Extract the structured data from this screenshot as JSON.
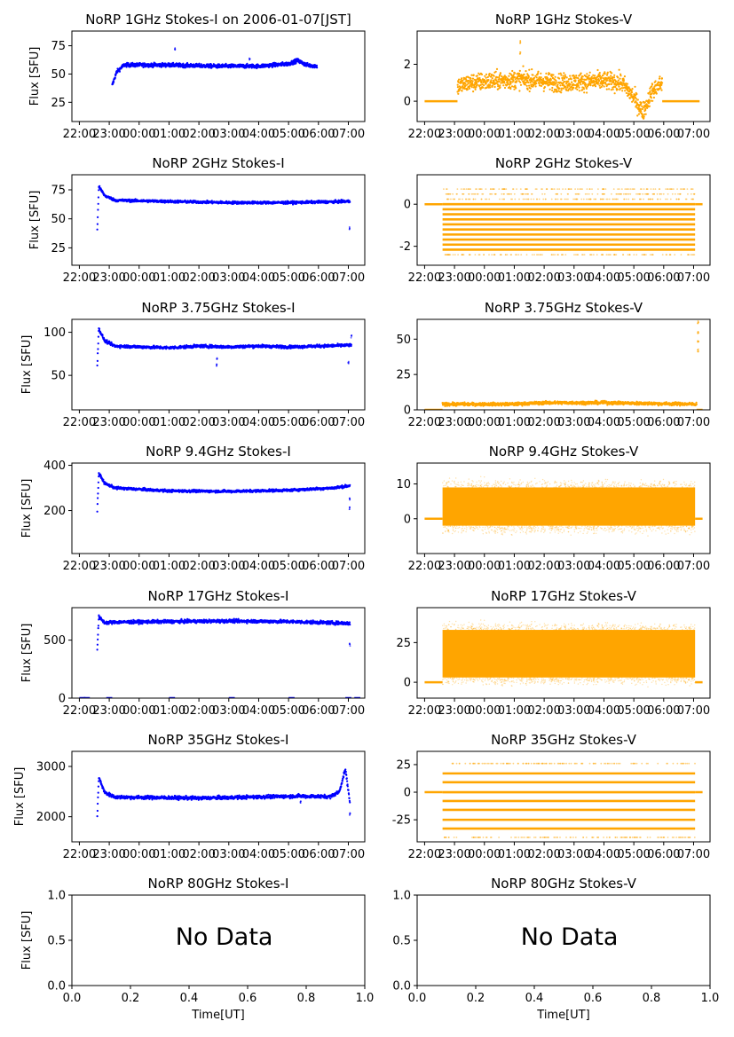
{
  "figure": {
    "xlabel": "Time[UT]",
    "ylabel": "Flux [SFU]",
    "colors": {
      "stokes_i": "#0000ff",
      "stokes_v": "#ffa500"
    },
    "time_ticks": [
      "22:00",
      "23:00",
      "00:00",
      "01:00",
      "02:00",
      "03:00",
      "04:00",
      "05:00",
      "06:00",
      "07:00"
    ]
  },
  "chart_data": [
    {
      "type": "scatter",
      "title": "NoRP 1GHz Stokes-I on 2006-01-07[JST]",
      "ylabel": "Flux [SFU]",
      "ylim": [
        8,
        88
      ],
      "yticks": [
        25,
        50,
        75
      ],
      "x_unit": "hours since 22:00 UT",
      "xlim": [
        -0.25,
        9.55
      ],
      "data": {
        "start": 1.1,
        "end": 7.95,
        "baseline": [
          [
            1.1,
            40
          ],
          [
            1.25,
            52
          ],
          [
            1.5,
            58
          ],
          [
            3,
            58
          ],
          [
            4.5,
            57
          ],
          [
            6,
            57
          ],
          [
            7,
            59
          ],
          [
            7.3,
            62
          ],
          [
            7.6,
            58
          ],
          [
            7.95,
            57
          ]
        ],
        "noise": 1.2,
        "spikes": [
          [
            3.2,
            72
          ],
          [
            5.7,
            63
          ]
        ]
      }
    },
    {
      "type": "scatter",
      "title": "NoRP 1GHz Stokes-V",
      "ylabel": "",
      "ylim": [
        -1.1,
        3.8
      ],
      "yticks": [
        0,
        2
      ],
      "x_unit": "hours since 22:00 UT",
      "xlim": [
        -0.25,
        9.55
      ],
      "data": {
        "start": 1.1,
        "end": 7.95,
        "pre": [
          0,
          1.1
        ],
        "post": [
          7.95,
          9.2
        ],
        "flat": 0,
        "baseline": [
          [
            1.1,
            0.8
          ],
          [
            1.5,
            1.0
          ],
          [
            3.2,
            1.2
          ],
          [
            4.5,
            1.0
          ],
          [
            6,
            1.1
          ],
          [
            6.6,
            1.0
          ],
          [
            7,
            0.2
          ],
          [
            7.3,
            -0.6
          ],
          [
            7.6,
            0.5
          ],
          [
            7.95,
            1.0
          ]
        ],
        "noise": 0.35,
        "spikes": [
          [
            3.2,
            3.2
          ],
          [
            3.2,
            2.6
          ]
        ]
      }
    },
    {
      "type": "scatter",
      "title": "NoRP 2GHz Stokes-I",
      "ylabel": "Flux [SFU]",
      "ylim": [
        10,
        88
      ],
      "yticks": [
        25,
        50,
        75
      ],
      "x_unit": "hours since 22:00 UT",
      "xlim": [
        -0.25,
        9.55
      ],
      "data": {
        "start": 0.6,
        "end": 9.05,
        "baseline": [
          [
            0.6,
            40
          ],
          [
            0.65,
            78
          ],
          [
            0.85,
            70
          ],
          [
            1.2,
            66
          ],
          [
            3,
            65
          ],
          [
            5,
            64
          ],
          [
            7,
            64
          ],
          [
            9.05,
            65
          ]
        ],
        "noise": 0.8,
        "spikes": [
          [
            9.05,
            42
          ]
        ]
      }
    },
    {
      "type": "scatter",
      "title": "NoRP 2GHz Stokes-V",
      "ylabel": "",
      "ylim": [
        -2.9,
        1.4
      ],
      "yticks": [
        0,
        -2
      ],
      "x_unit": "hours since 22:00 UT",
      "xlim": [
        -0.25,
        9.55
      ],
      "data": {
        "start": 0.6,
        "end": 9.05,
        "pre": [
          0,
          0.6
        ],
        "post": [
          9.05,
          9.3
        ],
        "flat": 0,
        "levels": [
          0,
          -0.24,
          -0.48,
          -0.72,
          -0.96,
          -1.2,
          -1.44,
          -1.68,
          -1.92,
          -2.16
        ],
        "sparse_levels": [
          0.24,
          0.48,
          0.72,
          -2.4
        ]
      }
    },
    {
      "type": "scatter",
      "title": "NoRP 3.75GHz Stokes-I",
      "ylabel": "Flux [SFU]",
      "ylim": [
        10,
        115
      ],
      "yticks": [
        50,
        100
      ],
      "x_unit": "hours since 22:00 UT",
      "xlim": [
        -0.25,
        9.55
      ],
      "data": {
        "start": 0.6,
        "end": 9.1,
        "baseline": [
          [
            0.6,
            62
          ],
          [
            0.65,
            104
          ],
          [
            0.85,
            90
          ],
          [
            1.2,
            84
          ],
          [
            3,
            82
          ],
          [
            4,
            84
          ],
          [
            5,
            83
          ],
          [
            6,
            84
          ],
          [
            7,
            83
          ],
          [
            9.1,
            85
          ]
        ],
        "noise": 1.2,
        "spikes": [
          [
            4.6,
            62
          ],
          [
            4.6,
            70
          ],
          [
            9.1,
            95
          ],
          [
            9.0,
            65
          ]
        ]
      }
    },
    {
      "type": "scatter",
      "title": "NoRP 3.75GHz Stokes-V",
      "ylabel": "",
      "ylim": [
        0,
        64
      ],
      "yticks": [
        0,
        25,
        50
      ],
      "x_unit": "hours since 22:00 UT",
      "xlim": [
        -0.25,
        9.55
      ],
      "data": {
        "start": 0.6,
        "end": 9.1,
        "pre": [
          0,
          0.6
        ],
        "post": [
          9.1,
          9.3
        ],
        "flat": 0,
        "baseline": [
          [
            0.6,
            4
          ],
          [
            3,
            4
          ],
          [
            4,
            5
          ],
          [
            6,
            5
          ],
          [
            9.1,
            4
          ]
        ],
        "noise": 0.8,
        "spikes": [
          [
            9.15,
            62
          ],
          [
            9.15,
            55
          ],
          [
            9.15,
            48
          ],
          [
            9.15,
            42
          ]
        ]
      }
    },
    {
      "type": "scatter",
      "title": "NoRP 9.4GHz Stokes-I",
      "ylabel": "Flux [SFU]",
      "ylim": [
        10,
        410
      ],
      "yticks": [
        200,
        400
      ],
      "x_unit": "hours since 22:00 UT",
      "xlim": [
        -0.25,
        9.55
      ],
      "data": {
        "start": 0.6,
        "end": 9.05,
        "baseline": [
          [
            0.6,
            200
          ],
          [
            0.65,
            365
          ],
          [
            0.85,
            320
          ],
          [
            1.2,
            300
          ],
          [
            3,
            287
          ],
          [
            5,
            285
          ],
          [
            7,
            290
          ],
          [
            8.5,
            300
          ],
          [
            9.05,
            310
          ]
        ],
        "noise": 4,
        "spikes": [
          [
            9.05,
            210
          ],
          [
            9.05,
            250
          ]
        ]
      }
    },
    {
      "type": "scatter",
      "title": "NoRP 9.4GHz Stokes-V",
      "ylabel": "",
      "ylim": [
        -10,
        16
      ],
      "yticks": [
        0,
        10
      ],
      "x_unit": "hours since 22:00 UT",
      "xlim": [
        -0.25,
        9.55
      ],
      "data": {
        "start": 0.6,
        "end": 9.05,
        "pre": [
          0,
          0.6
        ],
        "post": [
          9.05,
          9.3
        ],
        "flat": 0,
        "band": [
          -2,
          9
        ],
        "noise": 3.5,
        "spikes": []
      }
    },
    {
      "type": "scatter",
      "title": "NoRP 17GHz Stokes-I",
      "ylabel": "Flux [SFU]",
      "ylim": [
        0,
        780
      ],
      "yticks": [
        0,
        500
      ],
      "x_unit": "hours since 22:00 UT",
      "xlim": [
        -0.25,
        9.55
      ],
      "data": {
        "start": 0.6,
        "end": 9.05,
        "baseline": [
          [
            0.6,
            420
          ],
          [
            0.65,
            700
          ],
          [
            0.85,
            650
          ],
          [
            1.2,
            655
          ],
          [
            3,
            660
          ],
          [
            5,
            665
          ],
          [
            7,
            660
          ],
          [
            9.05,
            645
          ]
        ],
        "noise": 10,
        "spikes": [
          [
            9.05,
            460
          ]
        ],
        "zero_marks": [
          0.1,
          0.25,
          1.0,
          3.1,
          5.1,
          7.1,
          9.0,
          9.3
        ]
      }
    },
    {
      "type": "scatter",
      "title": "NoRP 17GHz Stokes-V",
      "ylabel": "",
      "ylim": [
        -10,
        47
      ],
      "yticks": [
        0,
        25
      ],
      "x_unit": "hours since 22:00 UT",
      "xlim": [
        -0.25,
        9.55
      ],
      "data": {
        "start": 0.6,
        "end": 9.05,
        "pre": [
          0,
          0.6
        ],
        "post": [
          9.05,
          9.3
        ],
        "flat": 0,
        "band": [
          3,
          33
        ],
        "noise": 7,
        "spikes": []
      }
    },
    {
      "type": "scatter",
      "title": "NoRP 35GHz Stokes-I",
      "ylabel": "Flux [SFU]",
      "ylim": [
        1500,
        3300
      ],
      "yticks": [
        2000,
        3000
      ],
      "x_unit": "hours since 22:00 UT",
      "xlim": [
        -0.25,
        9.55
      ],
      "data": {
        "start": 0.6,
        "end": 9.05,
        "baseline": [
          [
            0.6,
            2000
          ],
          [
            0.65,
            2780
          ],
          [
            0.85,
            2480
          ],
          [
            1.2,
            2390
          ],
          [
            4,
            2370
          ],
          [
            6.5,
            2400
          ],
          [
            7.3,
            2410
          ],
          [
            8.4,
            2400
          ],
          [
            8.7,
            2500
          ],
          [
            8.9,
            2950
          ],
          [
            9.05,
            2300
          ]
        ],
        "noise": 25,
        "spikes": [
          [
            7.4,
            2290
          ],
          [
            9.05,
            2050
          ]
        ]
      }
    },
    {
      "type": "scatter",
      "title": "NoRP 35GHz Stokes-V",
      "ylabel": "",
      "ylim": [
        -45,
        37
      ],
      "yticks": [
        25,
        0,
        -25
      ],
      "x_unit": "hours since 22:00 UT",
      "xlim": [
        -0.25,
        9.55
      ],
      "data": {
        "start": 0.6,
        "end": 9.05,
        "pre": [
          0,
          0.6
        ],
        "post": [
          9.05,
          9.3
        ],
        "flat": 0,
        "levels": [
          17,
          9,
          0,
          -8,
          -16,
          -25,
          -33
        ],
        "sparse_levels": [
          26,
          -41
        ]
      }
    },
    {
      "type": "empty",
      "title": "NoRP 80GHz Stokes-I",
      "ylabel": "Flux [SFU]",
      "xlabel": "Time[UT]",
      "xlim": [
        0,
        1
      ],
      "ylim": [
        0,
        1
      ],
      "xticks": [
        "0.0",
        "0.2",
        "0.4",
        "0.6",
        "0.8",
        "1.0"
      ],
      "yticks": [
        "0.0",
        "0.5",
        "1.0"
      ],
      "message": "No Data"
    },
    {
      "type": "empty",
      "title": "NoRP 80GHz Stokes-V",
      "ylabel": "",
      "xlabel": "Time[UT]",
      "xlim": [
        0,
        1
      ],
      "ylim": [
        0,
        1
      ],
      "xticks": [
        "0.0",
        "0.2",
        "0.4",
        "0.6",
        "0.8",
        "1.0"
      ],
      "yticks": [
        "0.0",
        "0.5",
        "1.0"
      ],
      "message": "No Data"
    }
  ]
}
